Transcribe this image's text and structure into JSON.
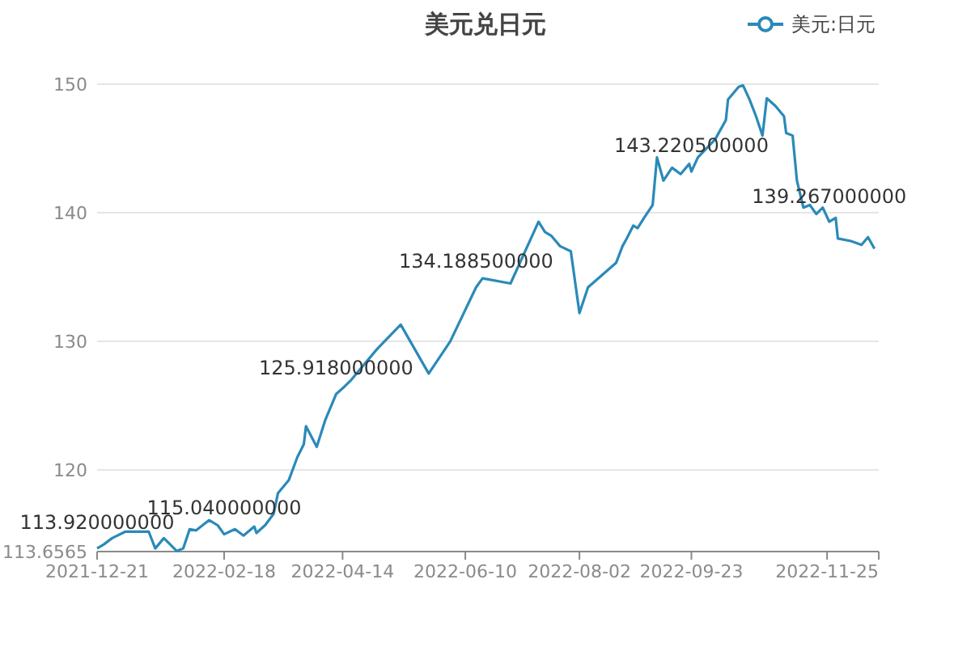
{
  "chart_data": {
    "type": "line",
    "title": "美元兑日元",
    "x": [
      "2021-12-21",
      "2021-12-24",
      "2021-12-28",
      "2022-01-03",
      "2022-01-14",
      "2022-01-17",
      "2022-01-21",
      "2022-01-27",
      "2022-01-30",
      "2022-02-02",
      "2022-02-05",
      "2022-02-11",
      "2022-02-15",
      "2022-02-18",
      "2022-02-23",
      "2022-02-27",
      "2022-03-04",
      "2022-03-05",
      "2022-03-09",
      "2022-03-13",
      "2022-03-15",
      "2022-03-20",
      "2022-03-24",
      "2022-03-27",
      "2022-03-28",
      "2022-04-02",
      "2022-04-06",
      "2022-04-11",
      "2022-04-15",
      "2022-04-18",
      "2022-04-30",
      "2022-05-11",
      "2022-05-24",
      "2022-06-03",
      "2022-06-15",
      "2022-06-18",
      "2022-07-01",
      "2022-07-14",
      "2022-07-17",
      "2022-07-20",
      "2022-07-24",
      "2022-07-29",
      "2022-08-02",
      "2022-08-06",
      "2022-08-19",
      "2022-08-22",
      "2022-08-24",
      "2022-08-27",
      "2022-08-29",
      "2022-09-01",
      "2022-09-05",
      "2022-09-07",
      "2022-09-10",
      "2022-09-14",
      "2022-09-18",
      "2022-09-22",
      "2022-09-23",
      "2022-09-26",
      "2022-10-04",
      "2022-10-09",
      "2022-10-10",
      "2022-10-15",
      "2022-10-17",
      "2022-10-20",
      "2022-10-23",
      "2022-10-26",
      "2022-10-28",
      "2022-11-01",
      "2022-11-05",
      "2022-11-06",
      "2022-11-09",
      "2022-11-11",
      "2022-11-14",
      "2022-11-17",
      "2022-11-20",
      "2022-11-23",
      "2022-11-26",
      "2022-11-29",
      "2022-11-30",
      "2022-12-06",
      "2022-12-11",
      "2022-12-14",
      "2022-12-17"
    ],
    "series": [
      {
        "name": "美元:日元",
        "color": "#2a8ab8",
        "values": [
          113.9,
          114.2,
          114.7,
          115.2,
          115.2,
          113.9,
          114.7,
          113.7,
          113.9,
          115.4,
          115.3,
          116.1,
          115.7,
          115.0,
          115.4,
          114.9,
          115.6,
          115.1,
          115.7,
          116.6,
          118.2,
          119.2,
          121.0,
          122.0,
          123.4,
          121.8,
          123.9,
          125.9,
          126.5,
          127.0,
          129.4,
          131.3,
          127.5,
          130.0,
          134.2,
          134.9,
          134.5,
          139.3,
          138.5,
          138.2,
          137.4,
          137.0,
          132.2,
          134.2,
          136.1,
          137.4,
          138.0,
          139.0,
          138.8,
          139.6,
          140.6,
          144.3,
          142.5,
          143.5,
          143.0,
          143.8,
          143.2,
          144.3,
          145.7,
          147.2,
          148.8,
          149.8,
          149.9,
          148.8,
          147.5,
          146.0,
          148.9,
          148.3,
          147.5,
          146.2,
          146.0,
          142.5,
          140.4,
          140.6,
          139.9,
          140.4,
          139.3,
          139.6,
          138.0,
          137.8,
          137.5,
          138.1,
          137.2
        ]
      }
    ],
    "xlim": [
      "2021-12-21",
      "2022-12-19"
    ],
    "xticks": [
      "2021-12-21",
      "2022-02-18",
      "2022-04-14",
      "2022-06-10",
      "2022-08-02",
      "2022-09-23",
      "2022-11-25"
    ],
    "ylim": [
      113.6565,
      150
    ],
    "yticks": [
      113.6565,
      120,
      130,
      140,
      150
    ],
    "grid": "y",
    "legend": "top right",
    "marker": "none",
    "line_style": "solid",
    "annotations": [
      {
        "text": "113.920000000",
        "x": "2021-12-21",
        "y": 113.92
      },
      {
        "text": "115.040000000",
        "x": "2022-02-18",
        "y": 115.04
      },
      {
        "text": "125.918000000",
        "x": "2022-04-11",
        "y": 125.918
      },
      {
        "text": "134.188500000",
        "x": "2022-06-15",
        "y": 134.1885
      },
      {
        "text": "143.220500000",
        "x": "2022-09-23",
        "y": 143.2205
      },
      {
        "text": "139.267000000",
        "x": "2022-11-26",
        "y": 139.267
      }
    ]
  }
}
